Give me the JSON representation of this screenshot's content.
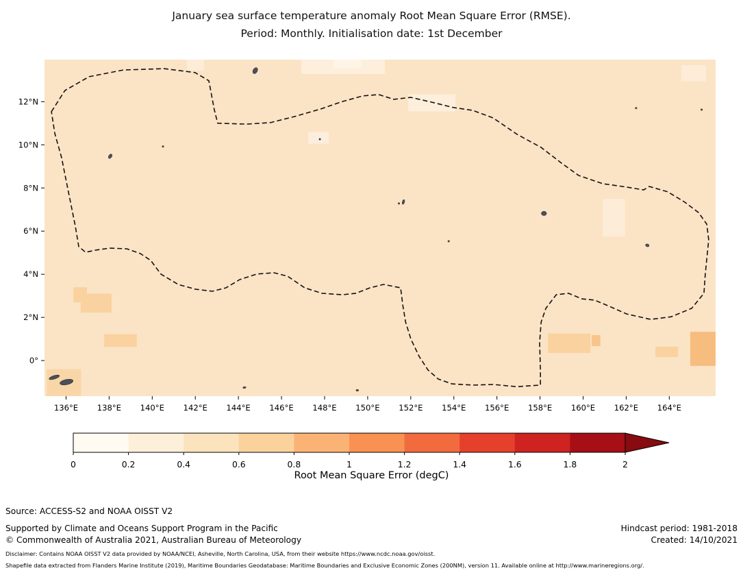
{
  "title": {
    "line1": "January sea surface temperature anomaly Root Mean Square Error (RMSE).",
    "line2": "Period: Monthly. Initialisation date: 1st December"
  },
  "colorbar": {
    "label": "Root Mean Square Error (degC)",
    "tick_labels": [
      "0",
      "0.2",
      "0.4",
      "0.6",
      "0.8",
      "1",
      "1.2",
      "1.4",
      "1.6",
      "1.8",
      "2"
    ],
    "bin_colors": [
      "#fffaf2",
      "#fcf0da",
      "#fbe3bd",
      "#fbd29c",
      "#fbb375",
      "#f99153",
      "#f26b3e",
      "#e4402b",
      "#ce2321",
      "#a60f15"
    ],
    "arrow_color": "#870b10"
  },
  "footer": {
    "source": "Source: ACCESS-S2 and NOAA OISST V2",
    "support": "Supported by Climate and Oceans Support Program in the Pacific",
    "copyright": "© Commonwealth of Australia 2021, Australian Bureau of Meteorology",
    "hindcast": "Hindcast period: 1981-2018",
    "created": "Created: 14/10/2021",
    "disclaimer1": "Disclaimer: Contains NOAA OISST V2 data provided by NOAA/NCEI, Asheville, North Carolina, USA, from their website https://www.ncdc.noaa.gov/oisst.",
    "disclaimer2": "Shapefile data extracted from Flanders Marine Institute (2019), Maritime Boundaries Geodatabase: Maritime Boundaries and Exclusive Economic Zones (200NM), version 11. Available online at http://www.marineregions.org/."
  },
  "chart_data": {
    "type": "heatmap",
    "title": "January sea surface temperature anomaly Root Mean Square Error (RMSE). Period: Monthly. Initialisation date: 1st December",
    "variable": "Sea surface temperature anomaly RMSE",
    "units": "degC",
    "colorbar_range": [
      0,
      2
    ],
    "colorbar_step": 0.2,
    "colorbar_extend": "max",
    "lon_range": [
      135.0,
      166.15
    ],
    "lat_range": [
      -1.65,
      13.95
    ],
    "base_color": "#fbe3c5",
    "base_rmse_bin": "0.2-0.4",
    "x_ticks": [
      {
        "lon": 136,
        "label": "136°E"
      },
      {
        "lon": 138,
        "label": "138°E"
      },
      {
        "lon": 140,
        "label": "140°E"
      },
      {
        "lon": 142,
        "label": "142°E"
      },
      {
        "lon": 144,
        "label": "144°E"
      },
      {
        "lon": 146,
        "label": "146°E"
      },
      {
        "lon": 148,
        "label": "148°E"
      },
      {
        "lon": 150,
        "label": "150°E"
      },
      {
        "lon": 152,
        "label": "152°E"
      },
      {
        "lon": 154,
        "label": "154°E"
      },
      {
        "lon": 156,
        "label": "156°E"
      },
      {
        "lon": 158,
        "label": "158°E"
      },
      {
        "lon": 160,
        "label": "160°E"
      },
      {
        "lon": 162,
        "label": "162°E"
      },
      {
        "lon": 164,
        "label": "164°E"
      }
    ],
    "y_ticks": [
      {
        "lat": 12,
        "label": "12°N"
      },
      {
        "lat": 10,
        "label": "10°N"
      },
      {
        "lat": 8,
        "label": "8°N"
      },
      {
        "lat": 6,
        "label": "6°N"
      },
      {
        "lat": 4,
        "label": "4°N"
      },
      {
        "lat": 2,
        "label": "2°N"
      },
      {
        "lat": 0,
        "label": "0°"
      }
    ],
    "field_patches": [
      {
        "lon0": 146.92,
        "lon1": 150.8,
        "lat_top": 13.95,
        "lat_bottom": 13.28,
        "rmse_bin": "0.0-0.2",
        "color": "#fdefdb"
      },
      {
        "lon0": 148.41,
        "lon1": 149.69,
        "lat_top": 13.95,
        "lat_bottom": 13.55,
        "rmse_bin": "0.0-0.2",
        "color": "#fef5e7"
      },
      {
        "lon0": 151.88,
        "lon1": 154.08,
        "lat_top": 12.35,
        "lat_bottom": 11.55,
        "rmse_bin": "0.0-0.2",
        "color": "#fdefdb"
      },
      {
        "lon0": 147.24,
        "lon1": 148.19,
        "lat_top": 10.6,
        "lat_bottom": 10.05,
        "rmse_bin": "0.0-0.2",
        "color": "#fceedd"
      },
      {
        "lon0": 160.91,
        "lon1": 161.95,
        "lat_top": 7.5,
        "lat_bottom": 5.75,
        "rmse_bin": "0.0-0.2",
        "color": "#fcecd8"
      },
      {
        "lon0": 164.56,
        "lon1": 165.7,
        "lat_top": 13.7,
        "lat_bottom": 12.95,
        "rmse_bin": "0.0-0.2",
        "color": "#fcecd8"
      },
      {
        "lon0": 141.6,
        "lon1": 142.4,
        "lat_top": 13.95,
        "lat_bottom": 13.45,
        "rmse_bin": "0.0-0.2",
        "color": "#fcecd8"
      },
      {
        "lon0": 136.34,
        "lon1": 136.97,
        "lat_top": 3.4,
        "lat_bottom": 2.7,
        "rmse_bin": "0.4-0.6",
        "color": "#f9d2a0"
      },
      {
        "lon0": 136.68,
        "lon1": 138.11,
        "lat_top": 3.1,
        "lat_bottom": 2.22,
        "rmse_bin": "0.4-0.6",
        "color": "#f9d2a0"
      },
      {
        "lon0": 137.77,
        "lon1": 139.29,
        "lat_top": 1.22,
        "lat_bottom": 0.64,
        "rmse_bin": "0.4-0.6",
        "color": "#f9d2a0"
      },
      {
        "lon0": 158.37,
        "lon1": 160.34,
        "lat_top": 1.25,
        "lat_bottom": 0.35,
        "rmse_bin": "0.4-0.6",
        "color": "#f9d2a0"
      },
      {
        "lon0": 160.4,
        "lon1": 160.8,
        "lat_top": 1.18,
        "lat_bottom": 0.67,
        "rmse_bin": "0.4-0.6",
        "color": "#f7c489"
      },
      {
        "lon0": 163.36,
        "lon1": 164.41,
        "lat_top": 0.64,
        "lat_bottom": 0.16,
        "rmse_bin": "0.4-0.6",
        "color": "#f9d2a0"
      },
      {
        "lon0": 164.97,
        "lon1": 166.15,
        "lat_top": 1.33,
        "lat_bottom": -0.25,
        "rmse_bin": "0.6-0.8",
        "color": "#f7bd7e"
      },
      {
        "lon0": 135.1,
        "lon1": 136.7,
        "lat_top": -0.4,
        "lat_bottom": -1.65,
        "rmse_bin": "0.4-0.6",
        "color": "#f9d6a8"
      }
    ],
    "eez_boundary": {
      "name": "EEZ boundary (dashed)",
      "points": [
        [
          135.32,
          11.54
        ],
        [
          135.95,
          12.52
        ],
        [
          137.07,
          13.16
        ],
        [
          138.66,
          13.47
        ],
        [
          140.56,
          13.53
        ],
        [
          141.99,
          13.35
        ],
        [
          142.63,
          12.97
        ],
        [
          142.88,
          11.63
        ],
        [
          143.04,
          11.0
        ],
        [
          144.38,
          10.96
        ],
        [
          145.49,
          11.03
        ],
        [
          146.6,
          11.31
        ],
        [
          147.81,
          11.66
        ],
        [
          148.83,
          12.01
        ],
        [
          149.78,
          12.27
        ],
        [
          150.51,
          12.33
        ],
        [
          151.21,
          12.11
        ],
        [
          152.01,
          12.2
        ],
        [
          152.96,
          11.98
        ],
        [
          153.98,
          11.73
        ],
        [
          154.87,
          11.6
        ],
        [
          155.82,
          11.25
        ],
        [
          156.93,
          10.49
        ],
        [
          158.05,
          9.88
        ],
        [
          159.0,
          9.15
        ],
        [
          159.79,
          8.58
        ],
        [
          160.91,
          8.2
        ],
        [
          162.02,
          8.04
        ],
        [
          162.81,
          7.91
        ],
        [
          163.07,
          8.07
        ],
        [
          163.93,
          7.82
        ],
        [
          164.72,
          7.34
        ],
        [
          165.36,
          6.86
        ],
        [
          165.74,
          6.32
        ],
        [
          165.83,
          5.59
        ],
        [
          165.67,
          4.01
        ],
        [
          165.61,
          3.12
        ],
        [
          165.04,
          2.42
        ],
        [
          164.09,
          2.03
        ],
        [
          163.13,
          1.91
        ],
        [
          162.02,
          2.16
        ],
        [
          161.23,
          2.51
        ],
        [
          160.53,
          2.8
        ],
        [
          159.95,
          2.86
        ],
        [
          159.32,
          3.12
        ],
        [
          158.75,
          3.05
        ],
        [
          158.27,
          2.42
        ],
        [
          158.05,
          1.78
        ],
        [
          157.98,
          0.83
        ],
        [
          158.02,
          -0.44
        ],
        [
          158.02,
          -1.14
        ],
        [
          156.93,
          -1.21
        ],
        [
          155.82,
          -1.11
        ],
        [
          154.87,
          -1.14
        ],
        [
          153.91,
          -1.08
        ],
        [
          153.28,
          -0.86
        ],
        [
          152.8,
          -0.44
        ],
        [
          152.39,
          0.19
        ],
        [
          152.01,
          0.99
        ],
        [
          151.76,
          1.78
        ],
        [
          151.63,
          2.57
        ],
        [
          151.53,
          3.37
        ],
        [
          150.74,
          3.53
        ],
        [
          150.1,
          3.37
        ],
        [
          149.46,
          3.12
        ],
        [
          148.83,
          3.05
        ],
        [
          147.87,
          3.12
        ],
        [
          147.08,
          3.37
        ],
        [
          146.28,
          3.91
        ],
        [
          145.65,
          4.07
        ],
        [
          144.85,
          4.01
        ],
        [
          144.06,
          3.75
        ],
        [
          143.42,
          3.37
        ],
        [
          142.79,
          3.21
        ],
        [
          141.99,
          3.31
        ],
        [
          141.2,
          3.53
        ],
        [
          140.4,
          4.01
        ],
        [
          139.93,
          4.64
        ],
        [
          139.45,
          4.96
        ],
        [
          138.82,
          5.18
        ],
        [
          138.02,
          5.21
        ],
        [
          137.38,
          5.12
        ],
        [
          136.91,
          5.02
        ],
        [
          136.59,
          5.28
        ],
        [
          136.43,
          6.23
        ],
        [
          136.11,
          7.82
        ],
        [
          135.79,
          9.41
        ],
        [
          135.48,
          10.52
        ]
      ]
    },
    "islands": [
      {
        "name": "island-group-sw",
        "lon": 135.45,
        "lat": -0.78,
        "w": 0.5,
        "h": 0.16,
        "rot": -18
      },
      {
        "name": "island-group-sw2",
        "lon": 136.02,
        "lat": -1.0,
        "w": 0.62,
        "h": 0.24,
        "rot": -12
      },
      {
        "name": "island-yap",
        "lon": 138.05,
        "lat": 9.47,
        "w": 0.14,
        "h": 0.22,
        "rot": 35
      },
      {
        "name": "island-guam",
        "lon": 144.78,
        "lat": 13.44,
        "w": 0.2,
        "h": 0.3,
        "rot": 30
      },
      {
        "name": "islet-a",
        "lon": 140.5,
        "lat": 9.92,
        "w": 0.07,
        "h": 0.07,
        "rot": 0
      },
      {
        "name": "island-chuuk",
        "lon": 151.66,
        "lat": 7.35,
        "w": 0.1,
        "h": 0.22,
        "rot": 15
      },
      {
        "name": "islet-b",
        "lon": 151.45,
        "lat": 7.28,
        "w": 0.06,
        "h": 0.06,
        "rot": 0
      },
      {
        "name": "island-pohnpei",
        "lon": 158.18,
        "lat": 6.82,
        "w": 0.24,
        "h": 0.2,
        "rot": 0
      },
      {
        "name": "island-kosrae",
        "lon": 162.98,
        "lat": 5.34,
        "w": 0.17,
        "h": 0.13,
        "rot": 20
      },
      {
        "name": "islet-c",
        "lon": 153.76,
        "lat": 5.53,
        "w": 0.07,
        "h": 0.05,
        "rot": 0
      },
      {
        "name": "islet-d",
        "lon": 144.28,
        "lat": -1.25,
        "w": 0.14,
        "h": 0.06,
        "rot": -10
      },
      {
        "name": "islet-e",
        "lon": 149.52,
        "lat": -1.38,
        "w": 0.12,
        "h": 0.06,
        "rot": 0
      },
      {
        "name": "islet-f",
        "lon": 147.78,
        "lat": 10.26,
        "w": 0.06,
        "h": 0.05,
        "rot": 0
      },
      {
        "name": "islet-g",
        "lon": 162.46,
        "lat": 11.7,
        "w": 0.05,
        "h": 0.05,
        "rot": 0
      },
      {
        "name": "islet-h",
        "lon": 165.5,
        "lat": 11.63,
        "w": 0.05,
        "h": 0.05,
        "rot": 0
      }
    ]
  }
}
